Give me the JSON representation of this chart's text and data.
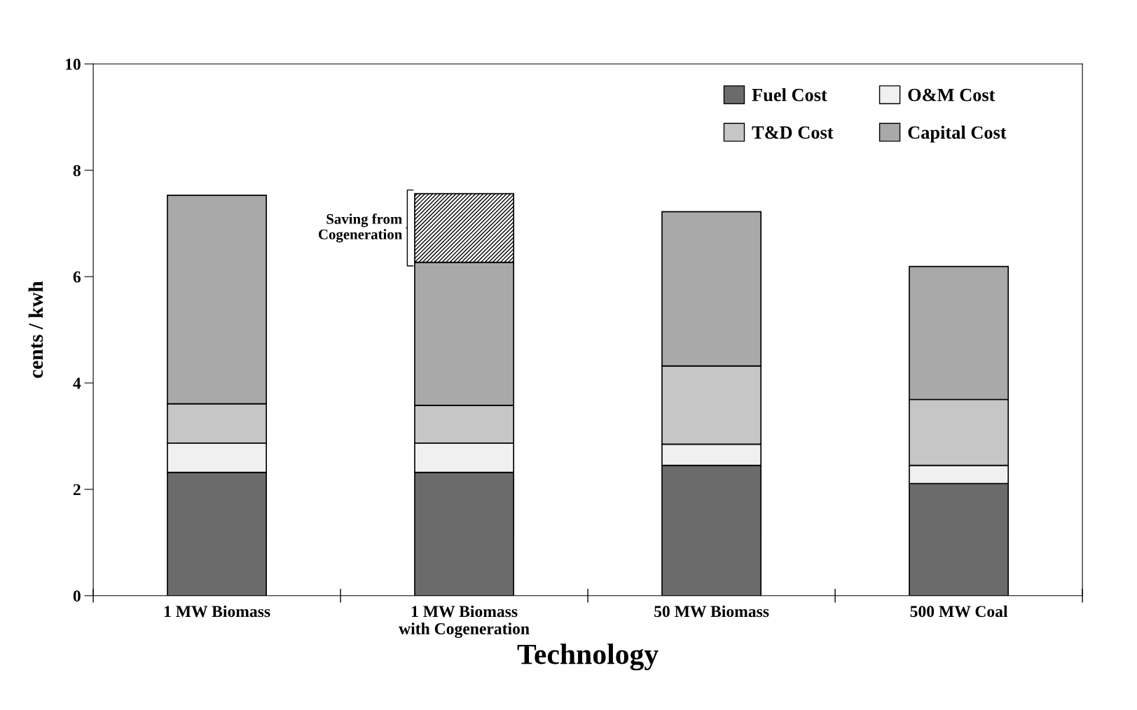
{
  "chart_data": {
    "type": "bar",
    "stacked": true,
    "categories": [
      "1 MW Biomass",
      "1 MW Biomass\nwith Cogeneration",
      "50 MW Biomass",
      "500 MW Coal"
    ],
    "series": [
      {
        "name": "Fuel Cost",
        "color": "#6b6b6b",
        "values": [
          2.32,
          2.32,
          2.45,
          2.11
        ]
      },
      {
        "name": "O&M Cost",
        "color": "#f0f0f0",
        "values": [
          0.55,
          0.55,
          0.4,
          0.34
        ]
      },
      {
        "name": "T&D Cost",
        "color": "#c6c6c6",
        "values": [
          0.74,
          0.71,
          1.47,
          1.24
        ]
      },
      {
        "name": "Capital Cost",
        "color": "#a9a9a9",
        "values": [
          3.92,
          2.69,
          2.9,
          2.5
        ]
      },
      {
        "color": "#000000",
        "values": [
          null,
          1.29,
          null,
          null
        ]
      }
    ],
    "xlabel": "Technology",
    "ylabel": "cents / kwh",
    "ylim": [
      0,
      10
    ],
    "yticks": [
      0,
      2,
      4,
      6,
      8,
      10
    ],
    "annotations": [
      "Saving from\nCogeneration"
    ],
    "legend": "top right",
    "grid": false
  }
}
